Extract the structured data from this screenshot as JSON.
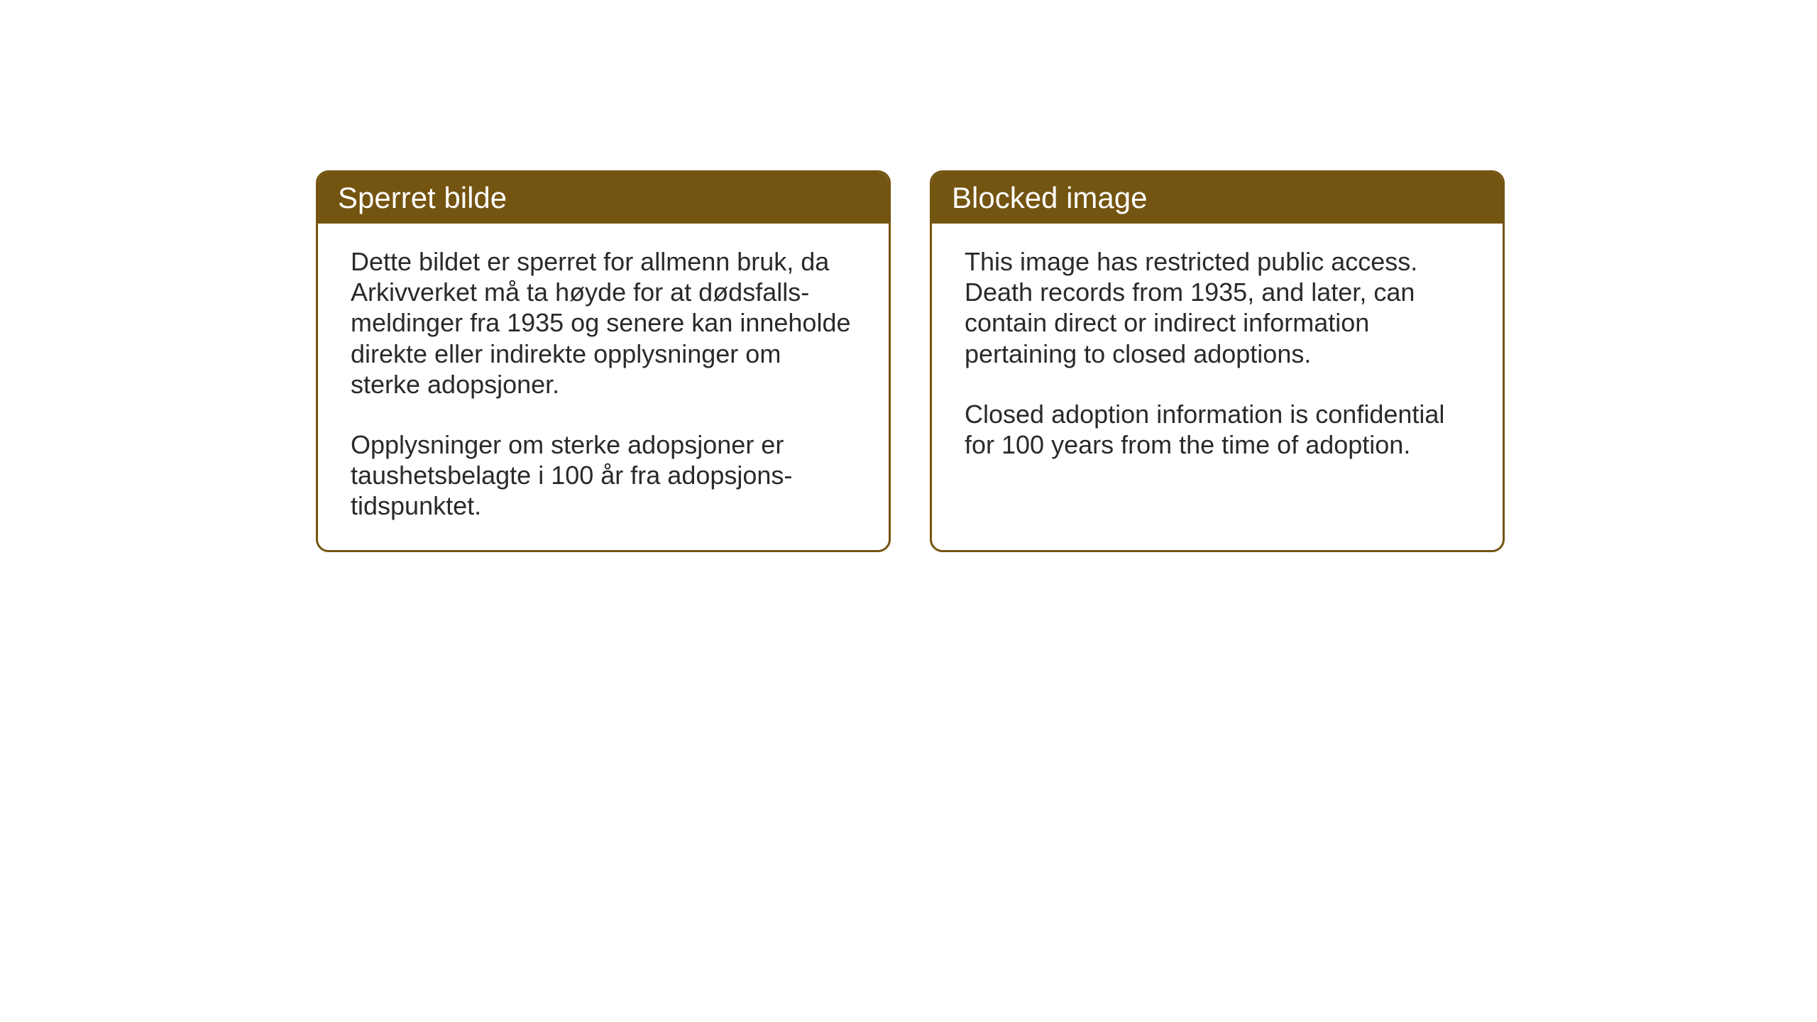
{
  "layout": {
    "background_color": "#ffffff",
    "card_border_color": "#745411",
    "card_border_width": 3,
    "card_border_radius": 18,
    "header_bg_color": "#745411",
    "header_text_color": "#ffffff",
    "body_text_color": "#2a2a2a",
    "header_fontsize": 42,
    "body_fontsize": 36
  },
  "cards": {
    "left": {
      "title": "Sperret bilde",
      "paragraph1": "Dette bildet er sperret for allmenn bruk, da Arkivverket må ta høyde for at dødsfalls-meldinger fra 1935 og senere kan inneholde direkte eller indirekte opplysninger om sterke adopsjoner.",
      "paragraph2": "Opplysninger om sterke adopsjoner er taushetsbelagte i 100 år fra adopsjons-tidspunktet."
    },
    "right": {
      "title": "Blocked image",
      "paragraph1": "This image has restricted public access. Death records from 1935, and later, can contain direct or indirect information pertaining to closed adoptions.",
      "paragraph2": "Closed adoption information is confidential for 100 years from the time of adoption."
    }
  }
}
